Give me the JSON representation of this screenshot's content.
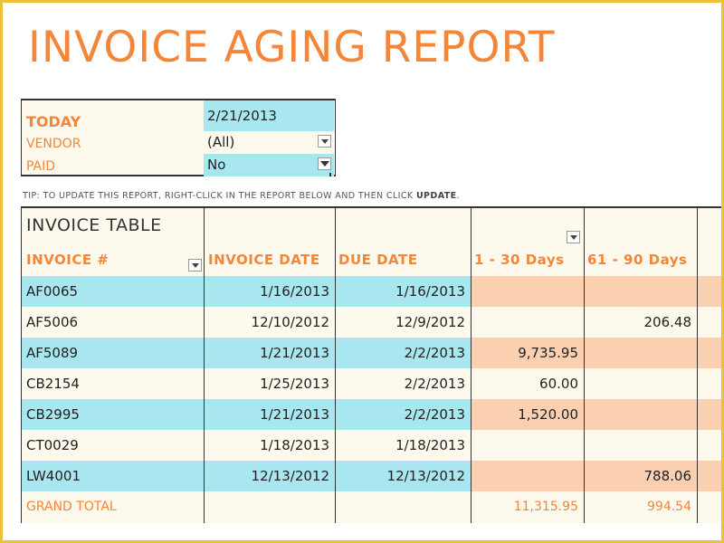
{
  "report": {
    "title": "INVOICE AGING REPORT",
    "tip_prefix": "TIP: TO UPDATE THIS REPORT, RIGHT-CLICK IN THE REPORT BELOW AND THEN CLICK ",
    "tip_action": "UPDATE",
    "tip_suffix": "."
  },
  "filters": {
    "today_label": "TODAY",
    "today_value": "2/21/2013",
    "vendor_label": "VENDOR",
    "vendor_value": "(All)",
    "paid_label": "PAID",
    "paid_value": "No"
  },
  "table": {
    "title": "INVOICE TABLE",
    "headers": {
      "invoice": "INVOICE #",
      "invoice_date": "INVOICE DATE",
      "due_date": "DUE DATE",
      "days_1_30": "1 - 30 Days",
      "days_61_90": "61 - 90 Days"
    },
    "rows": [
      {
        "invoice": "AF0065",
        "invoice_date": "1/16/2013",
        "due_date": "1/16/2013",
        "days_1_30": "",
        "days_61_90": ""
      },
      {
        "invoice": "AF5006",
        "invoice_date": "12/10/2012",
        "due_date": "12/9/2012",
        "days_1_30": "",
        "days_61_90": "206.48"
      },
      {
        "invoice": "AF5089",
        "invoice_date": "1/21/2013",
        "due_date": "2/2/2013",
        "days_1_30": "9,735.95",
        "days_61_90": ""
      },
      {
        "invoice": "CB2154",
        "invoice_date": "1/25/2013",
        "due_date": "2/2/2013",
        "days_1_30": "60.00",
        "days_61_90": ""
      },
      {
        "invoice": "CB2995",
        "invoice_date": "1/21/2013",
        "due_date": "2/2/2013",
        "days_1_30": "1,520.00",
        "days_61_90": ""
      },
      {
        "invoice": "CT0029",
        "invoice_date": "1/18/2013",
        "due_date": "1/18/2013",
        "days_1_30": "",
        "days_61_90": ""
      },
      {
        "invoice": "LW4001",
        "invoice_date": "12/13/2012",
        "due_date": "12/13/2012",
        "days_1_30": "",
        "days_61_90": "788.06"
      }
    ],
    "grand_total": {
      "label": "GRAND TOTAL",
      "days_1_30": "11,315.95",
      "days_61_90": "994.54"
    }
  },
  "colors": {
    "accent": "#f4863a",
    "row_blue": "#a8e6f0",
    "row_cream": "#fdf9ec",
    "aging_peach": "#fbd0b0",
    "frame": "#e8c33a"
  }
}
